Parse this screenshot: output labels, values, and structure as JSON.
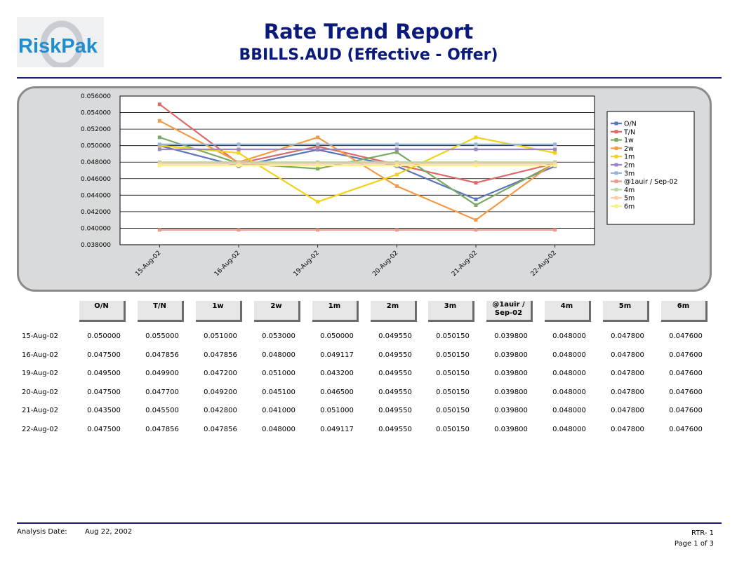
{
  "logo_text": "RiskPak",
  "title": "Rate Trend Report",
  "subtitle": "BBILLS.AUD (Effective - Offer)",
  "chart_data": {
    "type": "line",
    "categories": [
      "15-Aug-02",
      "16-Aug-02",
      "19-Aug-02",
      "20-Aug-02",
      "21-Aug-02",
      "22-Aug-02"
    ],
    "ylim": [
      0.038,
      0.056
    ],
    "yticks": [
      "0.038000",
      "0.040000",
      "0.042000",
      "0.044000",
      "0.046000",
      "0.048000",
      "0.050000",
      "0.052000",
      "0.054000",
      "0.056000"
    ],
    "grid": true,
    "legend_position": "right",
    "series": [
      {
        "name": "O/N",
        "color": "#5a76b8",
        "values": [
          0.05,
          0.0475,
          0.0495,
          0.0475,
          0.0435,
          0.0475
        ]
      },
      {
        "name": "T/N",
        "color": "#db6a68",
        "values": [
          0.055,
          0.047856,
          0.0499,
          0.0477,
          0.0455,
          0.047856
        ]
      },
      {
        "name": "1w",
        "color": "#7aaa62",
        "values": [
          0.051,
          0.047856,
          0.0472,
          0.0492,
          0.0428,
          0.047856
        ]
      },
      {
        "name": "2w",
        "color": "#f59a44",
        "values": [
          0.053,
          0.048,
          0.051,
          0.0451,
          0.041,
          0.048
        ]
      },
      {
        "name": "1m",
        "color": "#f2d21a",
        "values": [
          0.05,
          0.049117,
          0.0432,
          0.0465,
          0.051,
          0.049117
        ]
      },
      {
        "name": "2m",
        "color": "#9b86be",
        "values": [
          0.04955,
          0.04955,
          0.04955,
          0.04955,
          0.04955,
          0.04955
        ]
      },
      {
        "name": "3m",
        "color": "#94b5d8",
        "values": [
          0.05015,
          0.05015,
          0.05015,
          0.05015,
          0.05015,
          0.05015
        ]
      },
      {
        "name": "@1auir / Sep-02",
        "color": "#e89a90",
        "values": [
          0.0398,
          0.0398,
          0.0398,
          0.0398,
          0.0398,
          0.0398
        ]
      },
      {
        "name": "4m",
        "color": "#b9d7a3",
        "values": [
          0.048,
          0.048,
          0.048,
          0.048,
          0.048,
          0.048
        ]
      },
      {
        "name": "5m",
        "color": "#f8cda6",
        "values": [
          0.0478,
          0.0478,
          0.0478,
          0.0478,
          0.0478,
          0.0478
        ]
      },
      {
        "name": "6m",
        "color": "#fbef8a",
        "values": [
          0.0476,
          0.0476,
          0.0476,
          0.0476,
          0.0476,
          0.0476
        ]
      }
    ]
  },
  "table": {
    "headers": [
      "O/N",
      "T/N",
      "1w",
      "2w",
      "1m",
      "2m",
      "3m",
      "@1auir / Sep-02",
      "4m",
      "5m",
      "6m"
    ],
    "rows": [
      {
        "date": "15-Aug-02",
        "values": [
          "0.050000",
          "0.055000",
          "0.051000",
          "0.053000",
          "0.050000",
          "0.049550",
          "0.050150",
          "0.039800",
          "0.048000",
          "0.047800",
          "0.047600"
        ]
      },
      {
        "date": "16-Aug-02",
        "values": [
          "0.047500",
          "0.047856",
          "0.047856",
          "0.048000",
          "0.049117",
          "0.049550",
          "0.050150",
          "0.039800",
          "0.048000",
          "0.047800",
          "0.047600"
        ]
      },
      {
        "date": "19-Aug-02",
        "values": [
          "0.049500",
          "0.049900",
          "0.047200",
          "0.051000",
          "0.043200",
          "0.049550",
          "0.050150",
          "0.039800",
          "0.048000",
          "0.047800",
          "0.047600"
        ]
      },
      {
        "date": "20-Aug-02",
        "values": [
          "0.047500",
          "0.047700",
          "0.049200",
          "0.045100",
          "0.046500",
          "0.049550",
          "0.050150",
          "0.039800",
          "0.048000",
          "0.047800",
          "0.047600"
        ]
      },
      {
        "date": "21-Aug-02",
        "values": [
          "0.043500",
          "0.045500",
          "0.042800",
          "0.041000",
          "0.051000",
          "0.049550",
          "0.050150",
          "0.039800",
          "0.048000",
          "0.047800",
          "0.047600"
        ]
      },
      {
        "date": "22-Aug-02",
        "values": [
          "0.047500",
          "0.047856",
          "0.047856",
          "0.048000",
          "0.049117",
          "0.049550",
          "0.050150",
          "0.039800",
          "0.048000",
          "0.047800",
          "0.047600"
        ]
      }
    ]
  },
  "footer": {
    "analysis_label": "Analysis Date:",
    "analysis_date": "Aug 22, 2002",
    "report_code": "RTR- 1",
    "page": "Page 1 of 3"
  }
}
